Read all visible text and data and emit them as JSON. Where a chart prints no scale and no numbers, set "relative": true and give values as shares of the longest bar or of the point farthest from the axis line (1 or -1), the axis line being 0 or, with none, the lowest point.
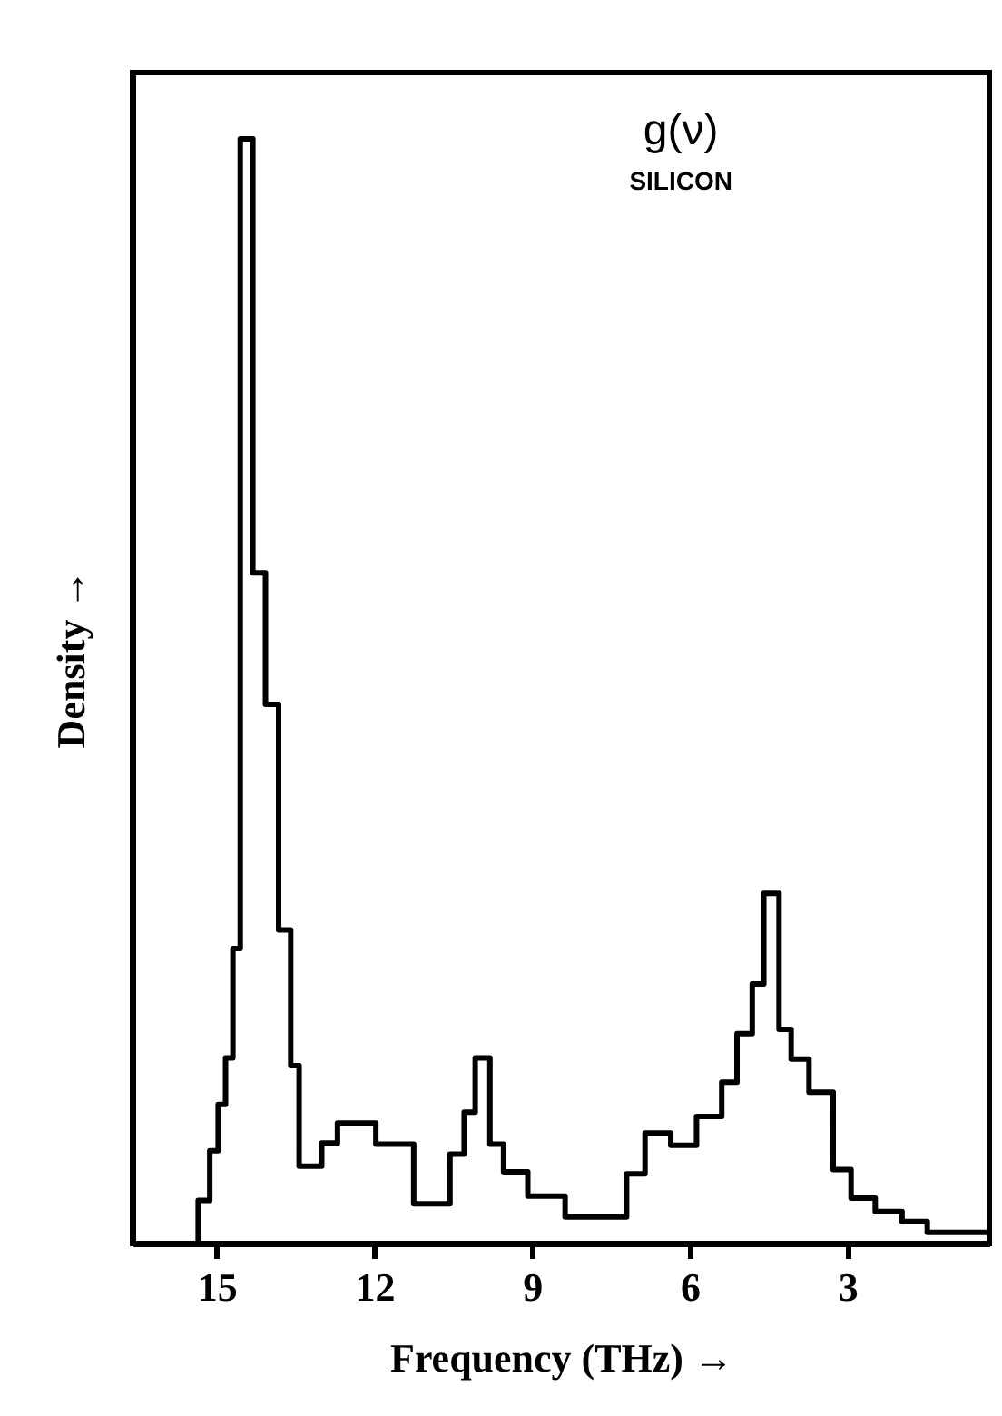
{
  "chart_data": {
    "type": "step",
    "relative": true,
    "xlabel": "Frequency (THz) →",
    "ylabel": "Density →",
    "annotations": [
      "g(ν)",
      "SILICON"
    ],
    "x": [
      0.3,
      1.48,
      1.96,
      2.47,
      2.93,
      3.27,
      3.73,
      4.07,
      4.3,
      4.59,
      4.81,
      5.1,
      5.39,
      5.87,
      6.36,
      6.85,
      7.2,
      8.37,
      9.08,
      9.54,
      9.8,
      10.08,
      10.29,
      10.56,
      11.25,
      11.97,
      12.7,
      13.0,
      13.43,
      13.59,
      13.82,
      14.07,
      14.31,
      14.55,
      14.69,
      14.83,
      14.97,
      15.13,
      15.35
    ],
    "values": [
      0.01,
      0.02,
      0.029,
      0.041,
      0.067,
      0.137,
      0.167,
      0.194,
      0.317,
      0.235,
      0.19,
      0.146,
      0.115,
      0.089,
      0.1,
      0.063,
      0.024,
      0.043,
      0.065,
      0.09,
      0.168,
      0.119,
      0.081,
      0.036,
      0.09,
      0.109,
      0.091,
      0.07,
      0.161,
      0.284,
      0.488,
      0.607,
      1.0,
      0.267,
      0.168,
      0.126,
      0.084,
      0.039,
      0
    ],
    "color": "#000000",
    "xlim": [
      16.6,
      0.3
    ],
    "xticks": [
      15,
      12,
      9,
      6,
      3
    ],
    "grid": false
  }
}
